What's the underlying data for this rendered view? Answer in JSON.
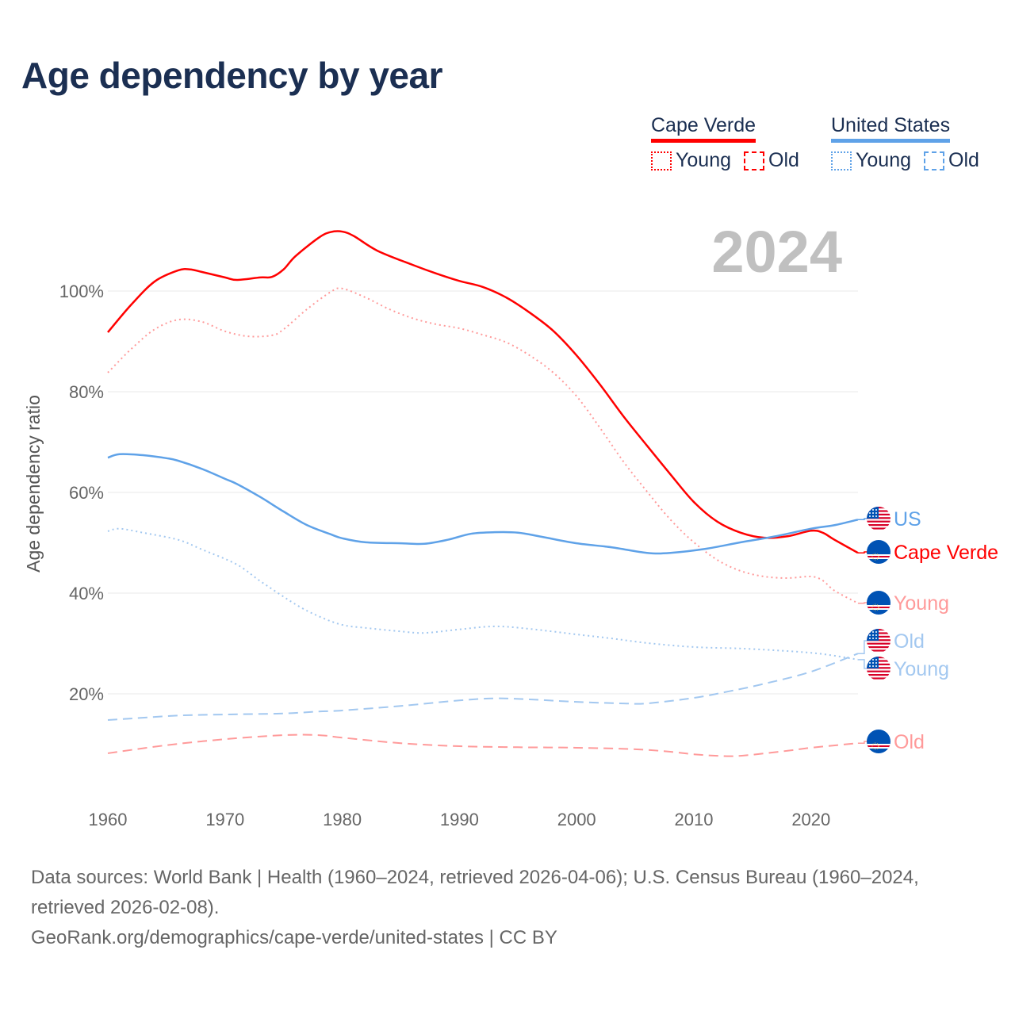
{
  "title": "Age dependency by year",
  "legend": {
    "groups": [
      {
        "name": "Cape Verde",
        "color": "#ff0000",
        "items": [
          "Young",
          "Old"
        ]
      },
      {
        "name": "United States",
        "color": "#5fa2e8",
        "items": [
          "Young",
          "Old"
        ]
      }
    ]
  },
  "footer": {
    "sources": "Data sources: World Bank | Health (1960–2024, retrieved 2026-04-06); U.S. Census Bureau (1960–2024, retrieved 2026-02-08).",
    "link": "GeoRank.org/demographics/cape-verde/united-states | CC BY"
  },
  "chart_data": {
    "type": "line",
    "title": "Age dependency by year",
    "year_label": "2024",
    "xlabel": "",
    "ylabel": "Age dependency ratio",
    "xlim": [
      1960,
      2024
    ],
    "ylim": [
      0,
      115
    ],
    "x_ticks": [
      "1960",
      "1970",
      "1980",
      "1990",
      "2000",
      "2010",
      "2020"
    ],
    "y_ticks": [
      "20%",
      "40%",
      "60%",
      "80%",
      "100%"
    ],
    "grid": true,
    "legend_position": "top-right",
    "series": [
      {
        "name": "Cape Verde",
        "label": "Cape Verde",
        "country": "cv",
        "style": "solid",
        "color": "#ff0000",
        "label_color": "#ff0000",
        "points": [
          [
            1960,
            91.8
          ],
          [
            1962,
            97.3
          ],
          [
            1964,
            101.9
          ],
          [
            1966,
            104.1
          ],
          [
            1967,
            104.3
          ],
          [
            1968,
            103.8
          ],
          [
            1970,
            102.7
          ],
          [
            1971,
            102.2
          ],
          [
            1973,
            102.7
          ],
          [
            1974,
            102.8
          ],
          [
            1975,
            104.3
          ],
          [
            1976,
            106.9
          ],
          [
            1978,
            110.6
          ],
          [
            1979,
            111.7
          ],
          [
            1980,
            111.8
          ],
          [
            1981,
            110.9
          ],
          [
            1983,
            108.0
          ],
          [
            1986,
            105.2
          ],
          [
            1988,
            103.5
          ],
          [
            1990,
            102.0
          ],
          [
            1992,
            100.8
          ],
          [
            1994,
            98.7
          ],
          [
            1996,
            95.7
          ],
          [
            1998,
            92.1
          ],
          [
            2000,
            87.2
          ],
          [
            2002,
            81.4
          ],
          [
            2004,
            75.1
          ],
          [
            2006,
            69.3
          ],
          [
            2008,
            63.6
          ],
          [
            2010,
            58.1
          ],
          [
            2012,
            54.2
          ],
          [
            2014,
            52.0
          ],
          [
            2016,
            51.0
          ],
          [
            2018,
            51.3
          ],
          [
            2020,
            52.4
          ],
          [
            2021,
            52.0
          ],
          [
            2022,
            50.6
          ],
          [
            2024,
            48.0
          ]
        ]
      },
      {
        "name": "Cape Verde Young",
        "label": "Young",
        "country": "cv",
        "style": "dotted",
        "color": "#ff9a9a",
        "label_color": "#ff9a9a",
        "points": [
          [
            1960,
            83.8
          ],
          [
            1962,
            88.5
          ],
          [
            1964,
            92.4
          ],
          [
            1966,
            94.3
          ],
          [
            1968,
            93.9
          ],
          [
            1970,
            92.0
          ],
          [
            1972,
            91.0
          ],
          [
            1974,
            91.2
          ],
          [
            1975,
            92.4
          ],
          [
            1977,
            96.4
          ],
          [
            1979,
            99.8
          ],
          [
            1980,
            100.5
          ],
          [
            1982,
            98.7
          ],
          [
            1984,
            96.4
          ],
          [
            1986,
            94.6
          ],
          [
            1988,
            93.4
          ],
          [
            1990,
            92.6
          ],
          [
            1992,
            91.3
          ],
          [
            1994,
            89.8
          ],
          [
            1996,
            87.2
          ],
          [
            1998,
            83.8
          ],
          [
            2000,
            79.1
          ],
          [
            2002,
            72.8
          ],
          [
            2004,
            66.1
          ],
          [
            2006,
            60.2
          ],
          [
            2008,
            54.6
          ],
          [
            2010,
            50.1
          ],
          [
            2012,
            46.6
          ],
          [
            2014,
            44.4
          ],
          [
            2016,
            43.3
          ],
          [
            2018,
            43.0
          ],
          [
            2020,
            43.3
          ],
          [
            2021,
            42.5
          ],
          [
            2022,
            40.5
          ],
          [
            2024,
            38.0
          ]
        ]
      },
      {
        "name": "Cape Verde Old",
        "label": "Old",
        "country": "cv",
        "style": "dashed",
        "color": "#ff9a9a",
        "label_color": "#ff9a9a",
        "points": [
          [
            1960,
            8.2
          ],
          [
            1965,
            9.8
          ],
          [
            1970,
            11.0
          ],
          [
            1975,
            11.8
          ],
          [
            1978,
            11.8
          ],
          [
            1980,
            11.3
          ],
          [
            1985,
            10.2
          ],
          [
            1990,
            9.6
          ],
          [
            1995,
            9.4
          ],
          [
            2000,
            9.3
          ],
          [
            2005,
            9.0
          ],
          [
            2008,
            8.5
          ],
          [
            2010,
            8.0
          ],
          [
            2012,
            7.7
          ],
          [
            2014,
            7.7
          ],
          [
            2018,
            8.7
          ],
          [
            2020,
            9.3
          ],
          [
            2024,
            10.2
          ]
        ]
      },
      {
        "name": "United States",
        "label": "US",
        "country": "us",
        "style": "solid",
        "color": "#5fa2e8",
        "label_color": "#5fa2e8",
        "points": [
          [
            1960,
            66.9
          ],
          [
            1961,
            67.6
          ],
          [
            1963,
            67.4
          ],
          [
            1965,
            66.8
          ],
          [
            1966,
            66.3
          ],
          [
            1968,
            64.7
          ],
          [
            1970,
            62.7
          ],
          [
            1971,
            61.7
          ],
          [
            1973,
            59.1
          ],
          [
            1975,
            56.2
          ],
          [
            1977,
            53.5
          ],
          [
            1979,
            51.7
          ],
          [
            1980,
            50.9
          ],
          [
            1982,
            50.1
          ],
          [
            1985,
            49.9
          ],
          [
            1987,
            49.8
          ],
          [
            1989,
            50.6
          ],
          [
            1991,
            51.8
          ],
          [
            1993,
            52.1
          ],
          [
            1995,
            52.0
          ],
          [
            1997,
            51.2
          ],
          [
            2000,
            49.9
          ],
          [
            2003,
            49.1
          ],
          [
            2006,
            48.0
          ],
          [
            2008,
            48.0
          ],
          [
            2011,
            48.8
          ],
          [
            2014,
            50.1
          ],
          [
            2017,
            51.3
          ],
          [
            2020,
            52.8
          ],
          [
            2022,
            53.5
          ],
          [
            2024,
            54.6
          ]
        ]
      },
      {
        "name": "United States Young",
        "label": "Young",
        "country": "us",
        "style": "dotted",
        "color": "#a3c8f0",
        "label_color": "#a3c8f0",
        "points": [
          [
            1960,
            52.3
          ],
          [
            1961,
            52.8
          ],
          [
            1963,
            52.0
          ],
          [
            1966,
            50.6
          ],
          [
            1968,
            48.7
          ],
          [
            1971,
            45.7
          ],
          [
            1973,
            42.4
          ],
          [
            1976,
            37.8
          ],
          [
            1978,
            35.4
          ],
          [
            1980,
            33.7
          ],
          [
            1982,
            33.1
          ],
          [
            1985,
            32.4
          ],
          [
            1987,
            32.1
          ],
          [
            1990,
            32.8
          ],
          [
            1993,
            33.4
          ],
          [
            1996,
            32.9
          ],
          [
            2000,
            31.8
          ],
          [
            2003,
            31.0
          ],
          [
            2006,
            30.1
          ],
          [
            2010,
            29.3
          ],
          [
            2014,
            29.0
          ],
          [
            2018,
            28.5
          ],
          [
            2021,
            27.9
          ],
          [
            2024,
            26.8
          ]
        ]
      },
      {
        "name": "United States Old",
        "label": "Old",
        "country": "us",
        "style": "dashed",
        "color": "#a3c8f0",
        "label_color": "#a3c8f0",
        "points": [
          [
            1960,
            14.8
          ],
          [
            1962,
            15.1
          ],
          [
            1966,
            15.7
          ],
          [
            1970,
            15.9
          ],
          [
            1975,
            16.1
          ],
          [
            1978,
            16.5
          ],
          [
            1980,
            16.7
          ],
          [
            1985,
            17.6
          ],
          [
            1990,
            18.7
          ],
          [
            1993,
            19.1
          ],
          [
            1996,
            18.9
          ],
          [
            2000,
            18.4
          ],
          [
            2004,
            18.1
          ],
          [
            2006,
            18.1
          ],
          [
            2010,
            19.2
          ],
          [
            2013,
            20.5
          ],
          [
            2016,
            22.0
          ],
          [
            2020,
            24.4
          ],
          [
            2024,
            28.0
          ]
        ]
      }
    ]
  }
}
